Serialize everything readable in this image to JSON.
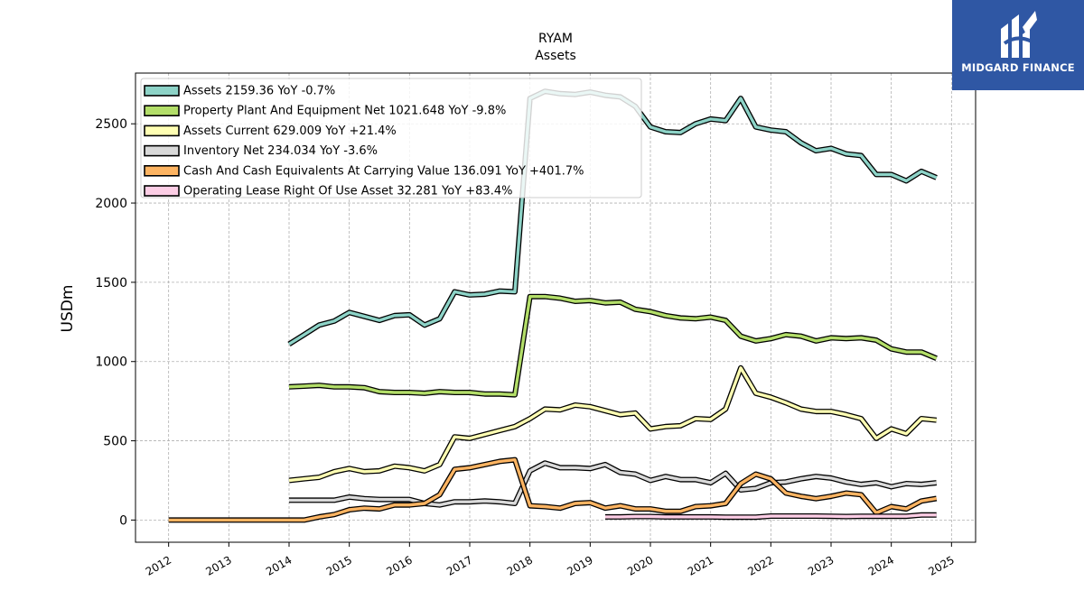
{
  "chart_data": {
    "type": "line",
    "title": "RYAM",
    "subtitle": "Assets",
    "ylabel": "USDm",
    "xlabel": "",
    "xlim": [
      2011.45,
      2025.4
    ],
    "ylim": [
      -140,
      2820
    ],
    "xticks": [
      2012,
      2013,
      2014,
      2015,
      2016,
      2017,
      2018,
      2019,
      2020,
      2021,
      2022,
      2023,
      2024,
      2025
    ],
    "yticks": [
      0,
      500,
      1000,
      1500,
      2000,
      2500
    ],
    "grid": true,
    "legend_position": "top-left",
    "series": [
      {
        "name": "Assets",
        "legend": "Assets  2159.36 YoY -0.7%",
        "color": "#8dd3c7",
        "x": [
          2014.0,
          2014.25,
          2014.5,
          2014.75,
          2015.0,
          2015.25,
          2015.5,
          2015.75,
          2016.0,
          2016.25,
          2016.5,
          2016.75,
          2017.0,
          2017.25,
          2017.5,
          2017.75,
          2018.0,
          2018.25,
          2018.5,
          2018.75,
          2019.0,
          2019.25,
          2019.5,
          2019.75,
          2020.0,
          2020.25,
          2020.5,
          2020.75,
          2021.0,
          2021.25,
          2021.5,
          2021.75,
          2022.0,
          2022.25,
          2022.5,
          2022.75,
          2023.0,
          2023.25,
          2023.5,
          2023.75,
          2024.0,
          2024.25,
          2024.5,
          2024.75
        ],
        "y": [
          1110,
          1170,
          1230,
          1255,
          1310,
          1285,
          1260,
          1290,
          1295,
          1230,
          1270,
          1440,
          1420,
          1425,
          1445,
          1440,
          2660,
          2705,
          2690,
          2685,
          2700,
          2680,
          2670,
          2610,
          2480,
          2450,
          2445,
          2500,
          2530,
          2520,
          2660,
          2480,
          2460,
          2450,
          2380,
          2330,
          2345,
          2310,
          2300,
          2180,
          2180,
          2140,
          2200,
          2160
        ]
      },
      {
        "name": "Property Plant And Equipment Net",
        "legend": "Property Plant And Equipment Net  1021.648 YoY -9.8%",
        "color": "#b3de69",
        "x": [
          2014.0,
          2014.25,
          2014.5,
          2014.75,
          2015.0,
          2015.25,
          2015.5,
          2015.75,
          2016.0,
          2016.25,
          2016.5,
          2016.75,
          2017.0,
          2017.25,
          2017.5,
          2017.75,
          2018.0,
          2018.25,
          2018.5,
          2018.75,
          2019.0,
          2019.25,
          2019.5,
          2019.75,
          2020.0,
          2020.25,
          2020.5,
          2020.75,
          2021.0,
          2021.25,
          2021.5,
          2021.75,
          2022.0,
          2022.25,
          2022.5,
          2022.75,
          2023.0,
          2023.25,
          2023.5,
          2023.75,
          2024.0,
          2024.25,
          2024.5,
          2024.75
        ],
        "y": [
          840,
          845,
          850,
          840,
          840,
          835,
          810,
          805,
          805,
          800,
          810,
          805,
          805,
          795,
          795,
          790,
          1410,
          1410,
          1400,
          1380,
          1385,
          1370,
          1375,
          1330,
          1315,
          1290,
          1275,
          1270,
          1280,
          1260,
          1160,
          1130,
          1145,
          1170,
          1160,
          1130,
          1150,
          1145,
          1150,
          1135,
          1080,
          1060,
          1060,
          1020
        ]
      },
      {
        "name": "Assets Current",
        "legend": "Assets Current  629.009 YoY +21.4%",
        "color": "#ffffb3",
        "x": [
          2014.0,
          2014.25,
          2014.5,
          2014.75,
          2015.0,
          2015.25,
          2015.5,
          2015.75,
          2016.0,
          2016.25,
          2016.5,
          2016.75,
          2017.0,
          2017.25,
          2017.5,
          2017.75,
          2018.0,
          2018.25,
          2018.5,
          2018.75,
          2019.0,
          2019.25,
          2019.5,
          2019.75,
          2020.0,
          2020.25,
          2020.5,
          2020.75,
          2021.0,
          2021.25,
          2021.5,
          2021.75,
          2022.0,
          2022.25,
          2022.5,
          2022.75,
          2023.0,
          2023.25,
          2023.5,
          2023.75,
          2024.0,
          2024.25,
          2024.5,
          2024.75
        ],
        "y": [
          250,
          260,
          270,
          305,
          325,
          305,
          310,
          340,
          330,
          310,
          350,
          525,
          515,
          540,
          565,
          590,
          640,
          700,
          695,
          725,
          715,
          690,
          665,
          675,
          575,
          590,
          595,
          640,
          635,
          700,
          960,
          800,
          775,
          740,
          700,
          685,
          685,
          665,
          640,
          515,
          575,
          545,
          640,
          630
        ]
      },
      {
        "name": "Inventory Net",
        "legend": "Inventory Net  234.034 YoY -3.6%",
        "color": "#d9d9d9",
        "x": [
          2014.0,
          2014.25,
          2014.5,
          2014.75,
          2015.0,
          2015.25,
          2015.5,
          2015.75,
          2016.0,
          2016.25,
          2016.5,
          2016.75,
          2017.0,
          2017.25,
          2017.5,
          2017.75,
          2018.0,
          2018.25,
          2018.5,
          2018.75,
          2019.0,
          2019.25,
          2019.5,
          2019.75,
          2020.0,
          2020.25,
          2020.5,
          2020.75,
          2021.0,
          2021.25,
          2021.5,
          2021.75,
          2022.0,
          2022.25,
          2022.5,
          2022.75,
          2023.0,
          2023.25,
          2023.5,
          2023.75,
          2024.0,
          2024.25,
          2024.5,
          2024.75
        ],
        "y": [
          125,
          125,
          125,
          125,
          145,
          135,
          130,
          130,
          130,
          105,
          95,
          115,
          115,
          120,
          115,
          105,
          310,
          360,
          330,
          330,
          325,
          350,
          300,
          290,
          250,
          275,
          255,
          255,
          235,
          295,
          190,
          200,
          235,
          240,
          260,
          275,
          265,
          240,
          225,
          235,
          210,
          230,
          225,
          235
        ]
      },
      {
        "name": "Cash And Cash Equivalents At Carrying Value",
        "legend": "Cash And Cash Equivalents At Carrying Value  136.091 YoY +401.7%",
        "color": "#fdb462",
        "x": [
          2012.0,
          2012.25,
          2012.5,
          2012.75,
          2013.0,
          2013.25,
          2013.5,
          2013.75,
          2014.0,
          2014.25,
          2014.5,
          2014.75,
          2015.0,
          2015.25,
          2015.5,
          2015.75,
          2016.0,
          2016.25,
          2016.5,
          2016.75,
          2017.0,
          2017.25,
          2017.5,
          2017.75,
          2018.0,
          2018.25,
          2018.5,
          2018.75,
          2019.0,
          2019.25,
          2019.5,
          2019.75,
          2020.0,
          2020.25,
          2020.5,
          2020.75,
          2021.0,
          2021.25,
          2021.5,
          2021.75,
          2022.0,
          2022.25,
          2022.5,
          2022.75,
          2023.0,
          2023.25,
          2023.5,
          2023.75,
          2024.0,
          2024.25,
          2024.5,
          2024.75
        ],
        "y": [
          0,
          0,
          0,
          0,
          0,
          0,
          0,
          0,
          0,
          0,
          20,
          35,
          65,
          75,
          70,
          95,
          95,
          105,
          160,
          320,
          330,
          350,
          370,
          380,
          90,
          85,
          75,
          105,
          110,
          75,
          90,
          70,
          70,
          55,
          55,
          85,
          90,
          105,
          230,
          290,
          260,
          170,
          150,
          135,
          150,
          170,
          160,
          45,
          85,
          70,
          120,
          136
        ]
      },
      {
        "name": "Operating Lease Right Of Use Asset",
        "legend": "Operating Lease Right Of Use Asset  32.281 YoY +83.4%",
        "color": "#fccde5",
        "x": [
          2019.25,
          2019.5,
          2019.75,
          2020.0,
          2020.25,
          2020.5,
          2020.75,
          2021.0,
          2021.25,
          2021.5,
          2021.75,
          2022.0,
          2022.25,
          2022.5,
          2022.75,
          2023.0,
          2023.25,
          2023.5,
          2023.75,
          2024.0,
          2024.25,
          2024.5,
          2024.75
        ],
        "y": [
          20,
          20,
          22,
          22,
          20,
          20,
          20,
          20,
          18,
          18,
          18,
          25,
          25,
          25,
          25,
          24,
          22,
          24,
          24,
          24,
          24,
          32,
          32
        ]
      }
    ]
  },
  "branding": {
    "logo_text": "MIDGARD FINANCE",
    "logo_color": "#2f57a4"
  }
}
